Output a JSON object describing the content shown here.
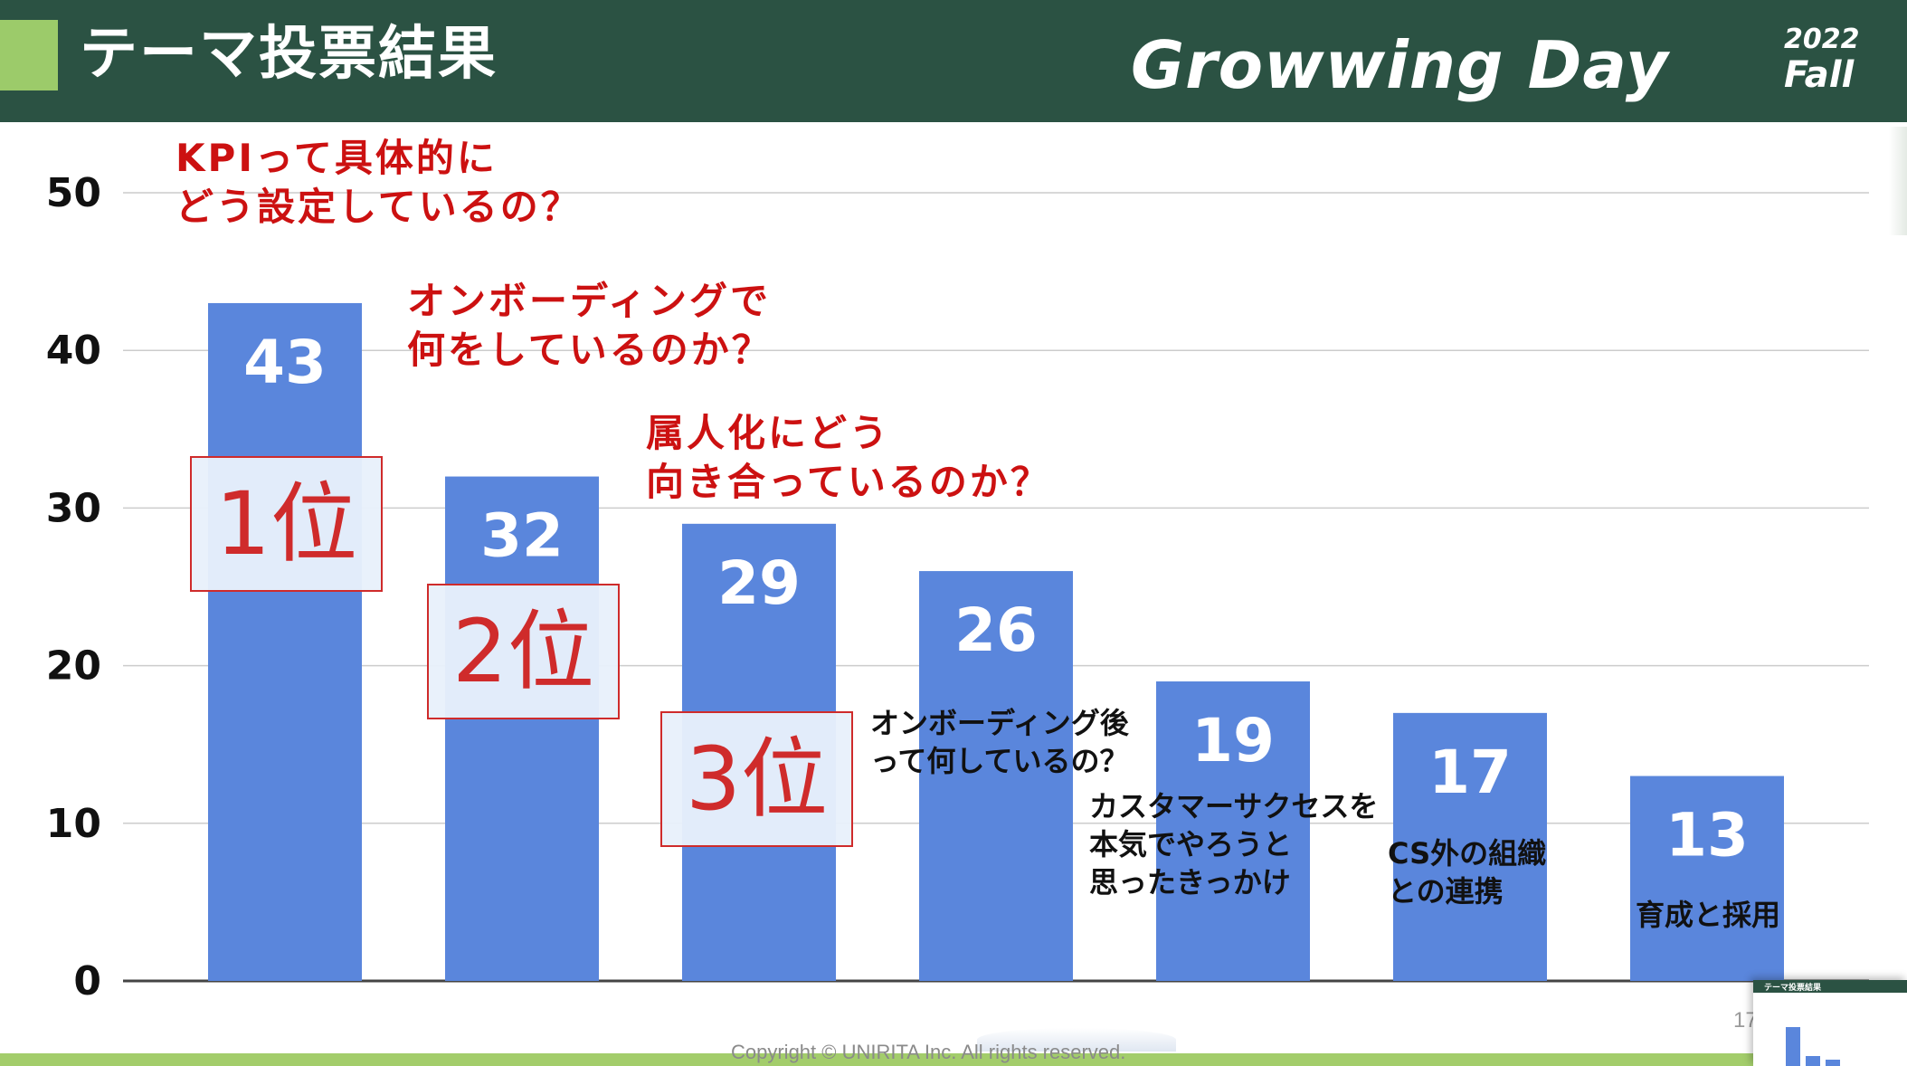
{
  "header": {
    "title": "テーマ投票結果",
    "brand": "Growwing Day",
    "brand_year": "2022",
    "brand_season": "Fall",
    "accent_color": "#9ccb6a",
    "background_color": "#2b5243"
  },
  "chart_data": {
    "type": "bar",
    "title": "",
    "xlabel": "",
    "ylabel": "",
    "ylim": [
      0,
      50
    ],
    "yticks": [
      0,
      10,
      20,
      30,
      40,
      50
    ],
    "grid": true,
    "bar_color": "#5a86dc",
    "categories": [
      "KPIって具体的にどう設定しているの？",
      "オンボーディングで何をしているのか？",
      "属人化にどう向き合っているのか？",
      "オンボーディング後って何しているの？",
      "カスタマーサクセスを本気でやろうと思ったきっかけ",
      "CS外の組織との連携",
      "育成と採用"
    ],
    "values": [
      43,
      32,
      29,
      26,
      19,
      17,
      13
    ],
    "data_labels": [
      "43",
      "32",
      "29",
      "26",
      "19",
      "17",
      "13"
    ]
  },
  "ranks": [
    "1位",
    "2位",
    "3位"
  ],
  "annotations": {
    "bar1": "KPIって具体的に\nどう設定しているの？",
    "bar2": "オンボーディングで\n何をしているのか？",
    "bar3": "属人化にどう\n向き合っているのか？",
    "bar4": "オンボーディング後\nって何しているの？",
    "bar5": "カスタマーサクセスを\n本気でやろうと\n思ったきっかけ",
    "bar6": "CS外の組織\nとの連携",
    "bar7": "育成と採用"
  },
  "footer": {
    "copyright": "Copyright © UNIRITA Inc. All rights reserved.",
    "page_number": "17"
  },
  "thumbnail": {
    "title": "テーマ投票結果"
  }
}
